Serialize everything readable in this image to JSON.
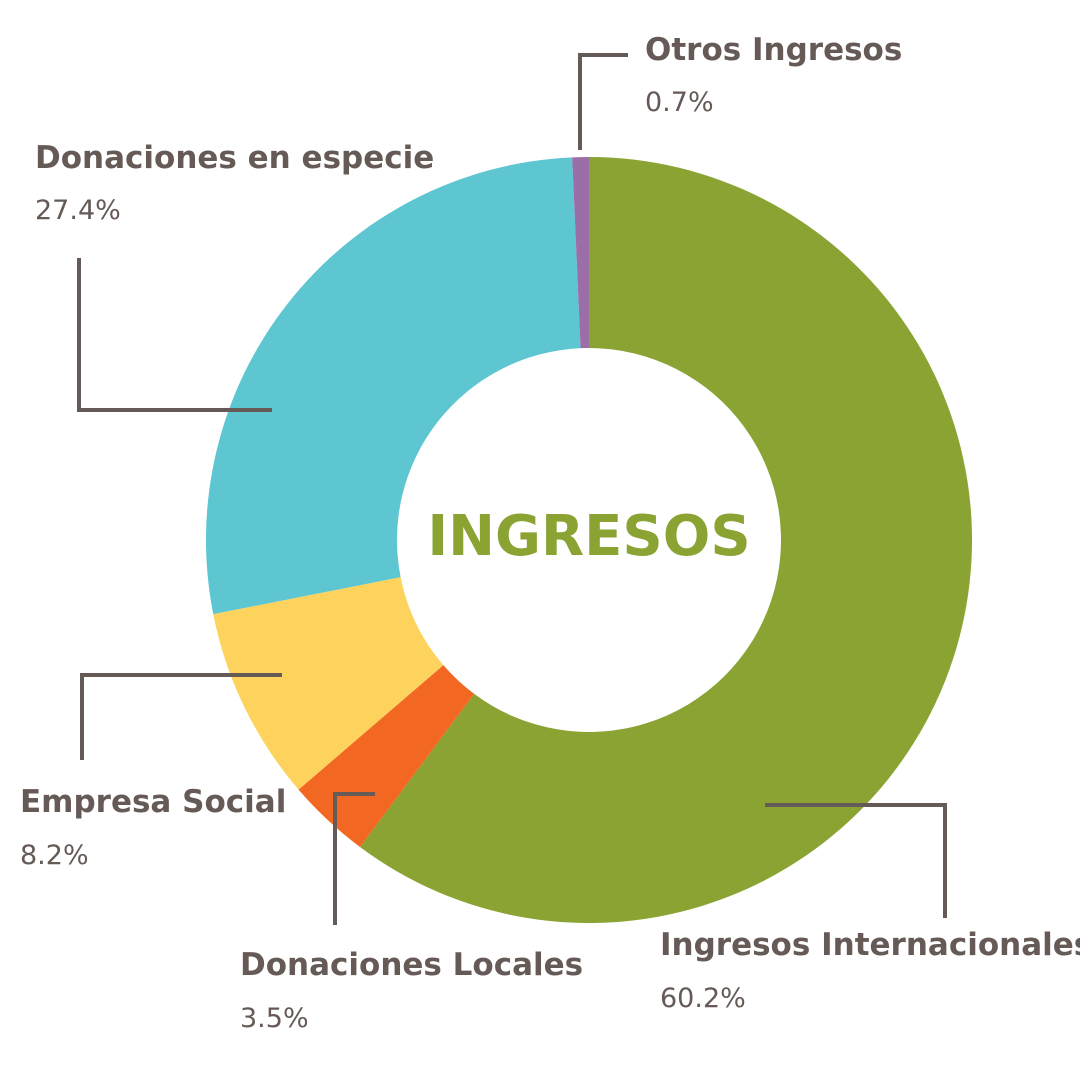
{
  "chart_data": {
    "type": "pie",
    "style": "donut",
    "center_label": "INGRESOS",
    "slices": [
      {
        "label": "Ingresos Internacionales",
        "value": 60.2,
        "value_text": "60.2%",
        "color": "#8aa333"
      },
      {
        "label": "Donaciones Locales",
        "value": 3.5,
        "value_text": "3.5%",
        "color": "#f26722"
      },
      {
        "label": "Empresa Social",
        "value": 8.2,
        "value_text": "8.2%",
        "color": "#fdd35d"
      },
      {
        "label": "Donaciones en especie",
        "value": 27.4,
        "value_text": "27.4%",
        "color": "#5dc6d1"
      },
      {
        "label": "Otros Ingresos",
        "value": 0.7,
        "value_text": "0.7%",
        "color": "#9b6ea8"
      }
    ],
    "legend": "none",
    "label_placement": "outside with leader lines"
  },
  "colors": {
    "text": "#655a56",
    "center_title": "#8aa333",
    "background": "#ffffff"
  }
}
